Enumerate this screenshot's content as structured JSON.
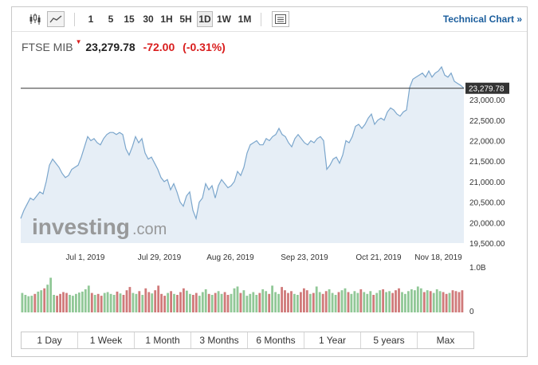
{
  "toolbar": {
    "chart_type_icons": [
      {
        "icon": "candlestick-icon",
        "active": false
      },
      {
        "icon": "area-chart-icon",
        "active": true
      }
    ],
    "timeframes": [
      {
        "label": "1",
        "active": false
      },
      {
        "label": "5",
        "active": false
      },
      {
        "label": "15",
        "active": false
      },
      {
        "label": "30",
        "active": false
      },
      {
        "label": "1H",
        "active": false
      },
      {
        "label": "5H",
        "active": false
      },
      {
        "label": "1D",
        "active": true
      },
      {
        "label": "1W",
        "active": false
      },
      {
        "label": "1M",
        "active": false
      }
    ],
    "settings_icon": "list-panel-icon",
    "technical_chart_label": "Technical Chart »"
  },
  "quote": {
    "name": "FTSE MIB",
    "direction_icon": "down-arrow-icon",
    "price": "23,279.78",
    "change": "-72.00",
    "change_pct": "(-0.31%)"
  },
  "watermark": {
    "text": "investing",
    "suffix": ".com"
  },
  "colors": {
    "line": "#7ba6cc",
    "area": "#e6eef6",
    "down": "#d91d1d",
    "link": "#1a5d9c",
    "vol_up": "#91c897",
    "vol_down": "#d07a7a"
  },
  "chart_data": {
    "type": "area",
    "price_axis": {
      "ticks": [
        "19,500.00",
        "20,000.00",
        "20,500.00",
        "21,000.00",
        "21,500.00",
        "22,000.00",
        "22,500.00",
        "23,000.00"
      ],
      "ylim": [
        19500,
        23800
      ]
    },
    "date_labels": [
      "Jul 1, 2019",
      "Jul 29, 2019",
      "Aug 26, 2019",
      "Sep 23, 2019",
      "Oct 21, 2019",
      "Nov 18, 2019"
    ],
    "current_price": 23279.78,
    "current_price_label": "23,279.78",
    "series": [
      {
        "values": [
          20100,
          20300,
          20450,
          20600,
          20550,
          20650,
          20750,
          20700,
          21000,
          21400,
          21550,
          21450,
          21350,
          21200,
          21100,
          21150,
          21300,
          21350,
          21400,
          21600,
          21850,
          22100,
          22000,
          22050,
          21950,
          21900,
          22050,
          22150,
          22200,
          22200,
          22150,
          22200,
          22150,
          21800,
          21650,
          21850,
          22100,
          21950,
          22050,
          21700,
          21550,
          21600,
          21450,
          21300,
          21100,
          21000,
          21050,
          20800,
          20950,
          20750,
          20500,
          20400,
          20650,
          20750,
          20300,
          20100,
          20500,
          20600,
          20950,
          20800,
          20900,
          20600,
          20900,
          21050,
          20950,
          20850,
          20900,
          21000,
          21250,
          21150,
          21350,
          21700,
          21900,
          21950,
          22000,
          21900,
          21900,
          22050,
          22000,
          22100,
          22150,
          22300,
          22150,
          22100,
          21950,
          21850,
          22050,
          22150,
          22050,
          21950,
          21900,
          22000,
          21950,
          22050,
          22100,
          22000,
          21300,
          21400,
          21550,
          21600,
          21450,
          21650,
          22000,
          21950,
          22100,
          22350,
          22400,
          22300,
          22400,
          22550,
          22650,
          22400,
          22500,
          22550,
          22500,
          22700,
          22800,
          22750,
          22650,
          22600,
          22700,
          22750,
          23300,
          23500,
          23550,
          23600,
          23650,
          23550,
          23700,
          23550,
          23650,
          23700,
          23800,
          23600,
          23550,
          23650,
          23450,
          23400,
          23350,
          23279.78
        ]
      }
    ],
    "volume": {
      "axis_labels": [
        "1.0B",
        "0"
      ],
      "ylim": [
        0,
        1.0
      ],
      "values": [
        0.42,
        0.38,
        0.35,
        0.36,
        0.4,
        0.45,
        0.48,
        0.52,
        0.6,
        0.75,
        0.38,
        0.36,
        0.4,
        0.44,
        0.42,
        0.38,
        0.36,
        0.4,
        0.43,
        0.45,
        0.5,
        0.58,
        0.42,
        0.38,
        0.4,
        0.36,
        0.42,
        0.44,
        0.4,
        0.38,
        0.45,
        0.41,
        0.38,
        0.48,
        0.55,
        0.42,
        0.4,
        0.46,
        0.38,
        0.52,
        0.44,
        0.41,
        0.48,
        0.58,
        0.4,
        0.36,
        0.42,
        0.46,
        0.4,
        0.38,
        0.44,
        0.52,
        0.47,
        0.4,
        0.38,
        0.42,
        0.36,
        0.44,
        0.5,
        0.4,
        0.38,
        0.42,
        0.46,
        0.4,
        0.44,
        0.38,
        0.4,
        0.52,
        0.56,
        0.42,
        0.48,
        0.36,
        0.4,
        0.44,
        0.38,
        0.42,
        0.5,
        0.46,
        0.4,
        0.58,
        0.44,
        0.4,
        0.55,
        0.48,
        0.42,
        0.46,
        0.4,
        0.38,
        0.44,
        0.52,
        0.48,
        0.4,
        0.42,
        0.56,
        0.44,
        0.4,
        0.46,
        0.5,
        0.42,
        0.38,
        0.44,
        0.48,
        0.52,
        0.44,
        0.4,
        0.46,
        0.42,
        0.5,
        0.44,
        0.4,
        0.46,
        0.38,
        0.42,
        0.48,
        0.5,
        0.44,
        0.46,
        0.42,
        0.48,
        0.52,
        0.44,
        0.4,
        0.46,
        0.5,
        0.48,
        0.56,
        0.52,
        0.44,
        0.48,
        0.46,
        0.42,
        0.5,
        0.46,
        0.44,
        0.4,
        0.42,
        0.48,
        0.46,
        0.44,
        0.48
      ]
    }
  },
  "ranges": [
    "1 Day",
    "1 Week",
    "1 Month",
    "3 Months",
    "6 Months",
    "1 Year",
    "5 years",
    "Max"
  ]
}
